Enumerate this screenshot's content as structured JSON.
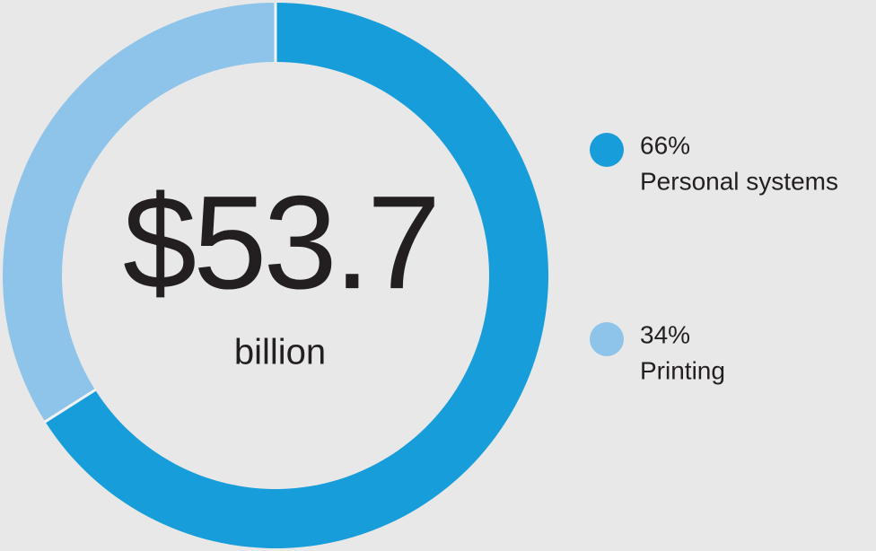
{
  "chart_data": {
    "type": "pie",
    "donut": true,
    "center_text": "$53.7",
    "center_subtext": "billion",
    "categories": [
      "Personal systems",
      "Printing"
    ],
    "values": [
      66,
      34
    ],
    "value_labels": [
      "66%",
      "34%"
    ],
    "colors": [
      "#179dd9",
      "#8ec3ea"
    ]
  }
}
